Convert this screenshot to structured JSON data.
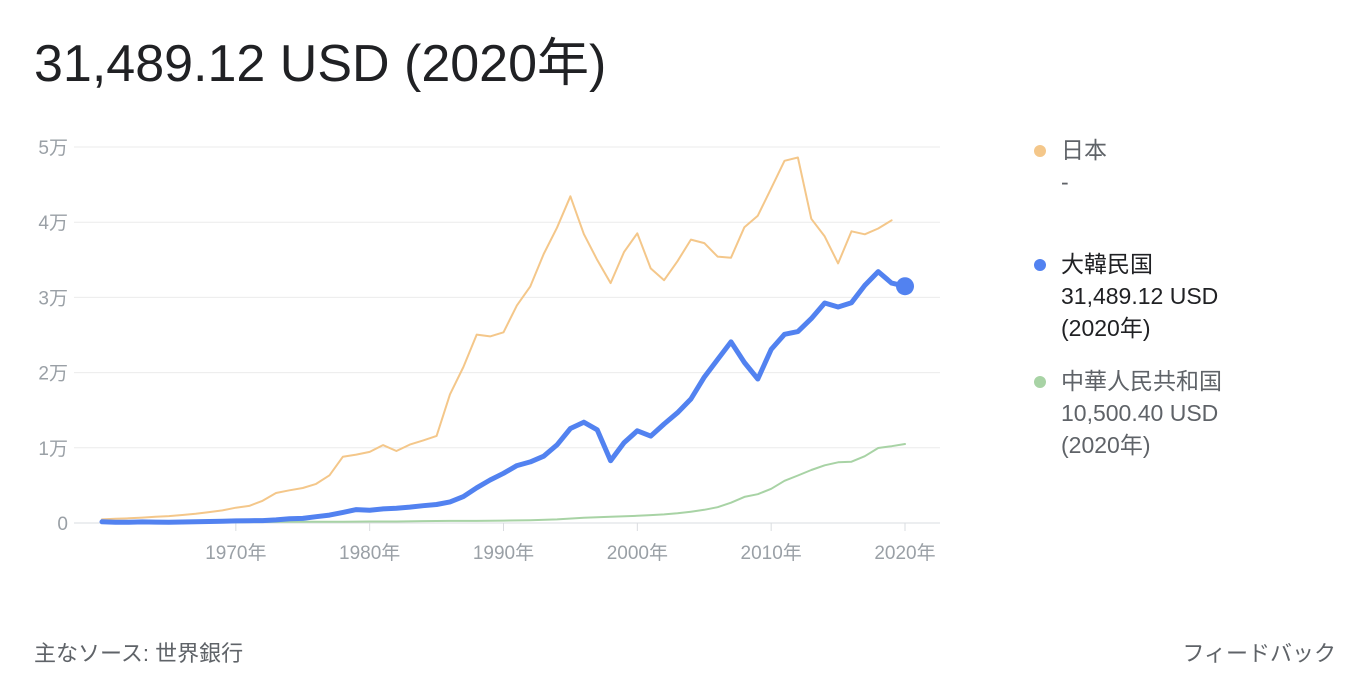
{
  "headline": "31,489.12 USD (2020年)",
  "chart_data": {
    "type": "line",
    "ylim": [
      0,
      50000
    ],
    "xlim": [
      1960,
      2020
    ],
    "y_ticks": [
      {
        "value": 0,
        "label": "0"
      },
      {
        "value": 10000,
        "label": "1万"
      },
      {
        "value": 20000,
        "label": "2万"
      },
      {
        "value": 30000,
        "label": "3万"
      },
      {
        "value": 40000,
        "label": "4万"
      },
      {
        "value": 50000,
        "label": "5万"
      }
    ],
    "x_ticks": [
      {
        "value": 1970,
        "label": "1970年"
      },
      {
        "value": 1980,
        "label": "1980年"
      },
      {
        "value": 1990,
        "label": "1990年"
      },
      {
        "value": 2000,
        "label": "2000年"
      },
      {
        "value": 2010,
        "label": "2010年"
      },
      {
        "value": 2020,
        "label": "2020年"
      }
    ],
    "grid": true,
    "legend_placement": "right",
    "series": [
      {
        "name": "日本",
        "color": "#f4c78a",
        "highlighted": false,
        "x": [
          1960,
          1961,
          1962,
          1963,
          1964,
          1965,
          1966,
          1967,
          1968,
          1969,
          1970,
          1971,
          1972,
          1973,
          1974,
          1975,
          1976,
          1977,
          1978,
          1979,
          1980,
          1981,
          1982,
          1983,
          1984,
          1985,
          1986,
          1987,
          1988,
          1989,
          1990,
          1991,
          1992,
          1993,
          1994,
          1995,
          1996,
          1997,
          1998,
          1999,
          2000,
          2001,
          2002,
          2003,
          2004,
          2005,
          2006,
          2007,
          2008,
          2009,
          2010,
          2011,
          2012,
          2013,
          2014,
          2015,
          2016,
          2017,
          2018,
          2019
        ],
        "y": [
          480,
          560,
          630,
          720,
          840,
          920,
          1060,
          1230,
          1450,
          1670,
          2040,
          2270,
          2950,
          3990,
          4350,
          4660,
          5200,
          6340,
          8820,
          9100,
          9460,
          10360,
          9580,
          10430,
          10980,
          11580,
          17110,
          20750,
          25050,
          24810,
          25360,
          28930,
          31460,
          35770,
          39270,
          43440,
          38440,
          34990,
          31900,
          36030,
          38530,
          33850,
          32290,
          34810,
          37690,
          37220,
          35430,
          35280,
          39340,
          40860,
          44510,
          48170,
          48600,
          40450,
          38110,
          34520,
          38790,
          38390,
          39160,
          40250
        ]
      },
      {
        "name": "大韓民国",
        "color": "#5282f0",
        "highlighted": true,
        "value_label": "31,489.12 USD",
        "year_label": "(2020年)",
        "x": [
          1960,
          1961,
          1962,
          1963,
          1964,
          1965,
          1966,
          1967,
          1968,
          1969,
          1970,
          1971,
          1972,
          1973,
          1974,
          1975,
          1976,
          1977,
          1978,
          1979,
          1980,
          1981,
          1982,
          1983,
          1984,
          1985,
          1986,
          1987,
          1988,
          1989,
          1990,
          1991,
          1992,
          1993,
          1994,
          1995,
          1996,
          1997,
          1998,
          1999,
          2000,
          2001,
          2002,
          2003,
          2004,
          2005,
          2006,
          2007,
          2008,
          2009,
          2010,
          2011,
          2012,
          2013,
          2014,
          2015,
          2016,
          2017,
          2018,
          2019,
          2020
        ],
        "y": [
          158,
          94,
          106,
          146,
          124,
          108,
          133,
          161,
          198,
          243,
          279,
          301,
          324,
          407,
          563,
          615,
          834,
          1055,
          1405,
          1784,
          1704,
          1870,
          1973,
          2118,
          2307,
          2457,
          2803,
          3511,
          4686,
          5717,
          6610,
          7637,
          8127,
          8885,
          10385,
          12565,
          13403,
          12398,
          8282,
          10672,
          12257,
          11561,
          13165,
          14673,
          16496,
          19403,
          21744,
          24086,
          21345,
          19144,
          23087,
          25096,
          25457,
          27180,
          29250,
          28730,
          29290,
          31600,
          33430,
          31900,
          31489.12
        ]
      },
      {
        "name": "中華人民共和国",
        "color": "#a8d3a5",
        "highlighted": false,
        "value_label": "10,500.40 USD",
        "year_label": "(2020年)",
        "x": [
          1960,
          1962,
          1964,
          1966,
          1968,
          1970,
          1972,
          1974,
          1976,
          1978,
          1980,
          1982,
          1984,
          1986,
          1988,
          1990,
          1992,
          1994,
          1996,
          1998,
          2000,
          2001,
          2002,
          2003,
          2004,
          2005,
          2006,
          2007,
          2008,
          2009,
          2010,
          2011,
          2012,
          2013,
          2014,
          2015,
          2016,
          2017,
          2018,
          2019,
          2020
        ],
        "y": [
          90,
          70,
          85,
          100,
          90,
          113,
          132,
          157,
          165,
          156,
          195,
          203,
          251,
          282,
          284,
          318,
          366,
          473,
          709,
          829,
          959,
          1053,
          1149,
          1289,
          1509,
          1753,
          2099,
          2694,
          3468,
          3832,
          4550,
          5618,
          6317,
          7051,
          7679,
          8067,
          8148,
          8880,
          9977,
          10217,
          10500.4
        ]
      }
    ]
  },
  "legend_empty_value": "-",
  "footer": {
    "source": "主なソース: 世界銀行",
    "feedback": "フィードバック"
  }
}
